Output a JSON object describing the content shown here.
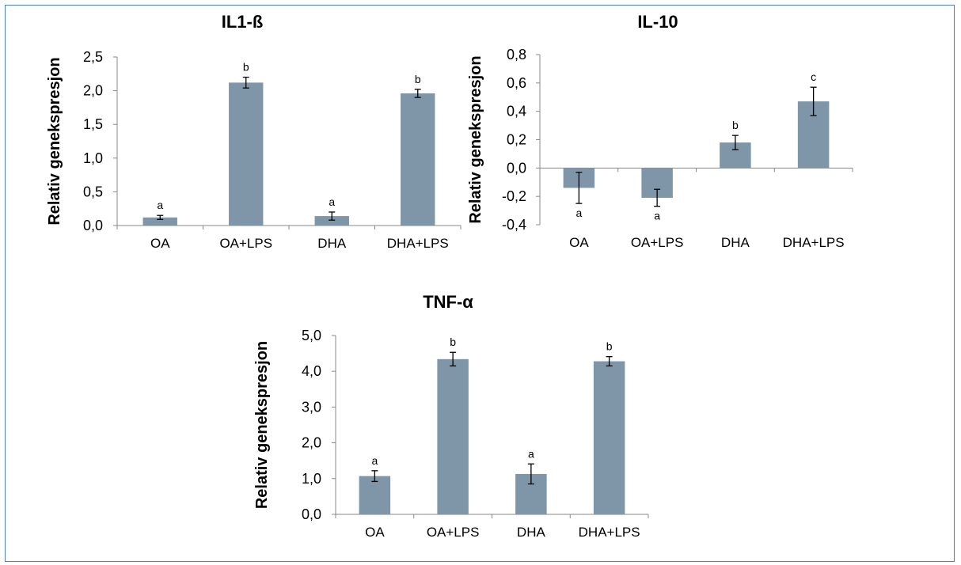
{
  "figure": {
    "border_color": "#4f81bd"
  },
  "chart_data": [
    {
      "type": "bar",
      "title": "IL1-ß",
      "ylabel": "Relativ genekspresjon",
      "xlabel": "",
      "categories": [
        "OA",
        "OA+LPS",
        "DHA",
        "DHA+LPS"
      ],
      "values": [
        0.12,
        2.12,
        0.14,
        1.96
      ],
      "errors": [
        0.03,
        0.08,
        0.06,
        0.06
      ],
      "significance": [
        "a",
        "b",
        "a",
        "b"
      ],
      "ylim": [
        0,
        2.5
      ],
      "yticks": [
        "0,0",
        "0,5",
        "1,0",
        "1,5",
        "2,0",
        "2,5"
      ],
      "ytick_values": [
        0,
        0.5,
        1.0,
        1.5,
        2.0,
        2.5
      ],
      "bar_color": "#7f96a8",
      "grid": false
    },
    {
      "type": "bar",
      "title": "IL-10",
      "ylabel": "Relativ genekspresjon",
      "xlabel": "",
      "categories": [
        "OA",
        "OA+LPS",
        "DHA",
        "DHA+LPS"
      ],
      "values": [
        -0.14,
        -0.21,
        0.18,
        0.47
      ],
      "errors": [
        0.11,
        0.06,
        0.05,
        0.1
      ],
      "significance": [
        "a",
        "a",
        "b",
        "c"
      ],
      "ylim": [
        -0.4,
        0.8
      ],
      "yticks": [
        "-0,4",
        "-0,2",
        "0,0",
        "0,2",
        "0,4",
        "0,6",
        "0,8"
      ],
      "ytick_values": [
        -0.4,
        -0.2,
        0,
        0.2,
        0.4,
        0.6,
        0.8
      ],
      "bar_color": "#7f96a8",
      "grid": false
    },
    {
      "type": "bar",
      "title": "TNF-α",
      "ylabel": "Relativ genekspresjon",
      "xlabel": "",
      "categories": [
        "OA",
        "OA+LPS",
        "DHA",
        "DHA+LPS"
      ],
      "values": [
        1.07,
        4.34,
        1.13,
        4.28
      ],
      "errors": [
        0.15,
        0.19,
        0.28,
        0.13
      ],
      "significance": [
        "a",
        "b",
        "a",
        "b"
      ],
      "ylim": [
        0,
        5.0
      ],
      "yticks": [
        "0,0",
        "1,0",
        "2,0",
        "3,0",
        "4,0",
        "5,0"
      ],
      "ytick_values": [
        0,
        1,
        2,
        3,
        4,
        5
      ],
      "bar_color": "#7f96a8",
      "grid": false
    }
  ]
}
